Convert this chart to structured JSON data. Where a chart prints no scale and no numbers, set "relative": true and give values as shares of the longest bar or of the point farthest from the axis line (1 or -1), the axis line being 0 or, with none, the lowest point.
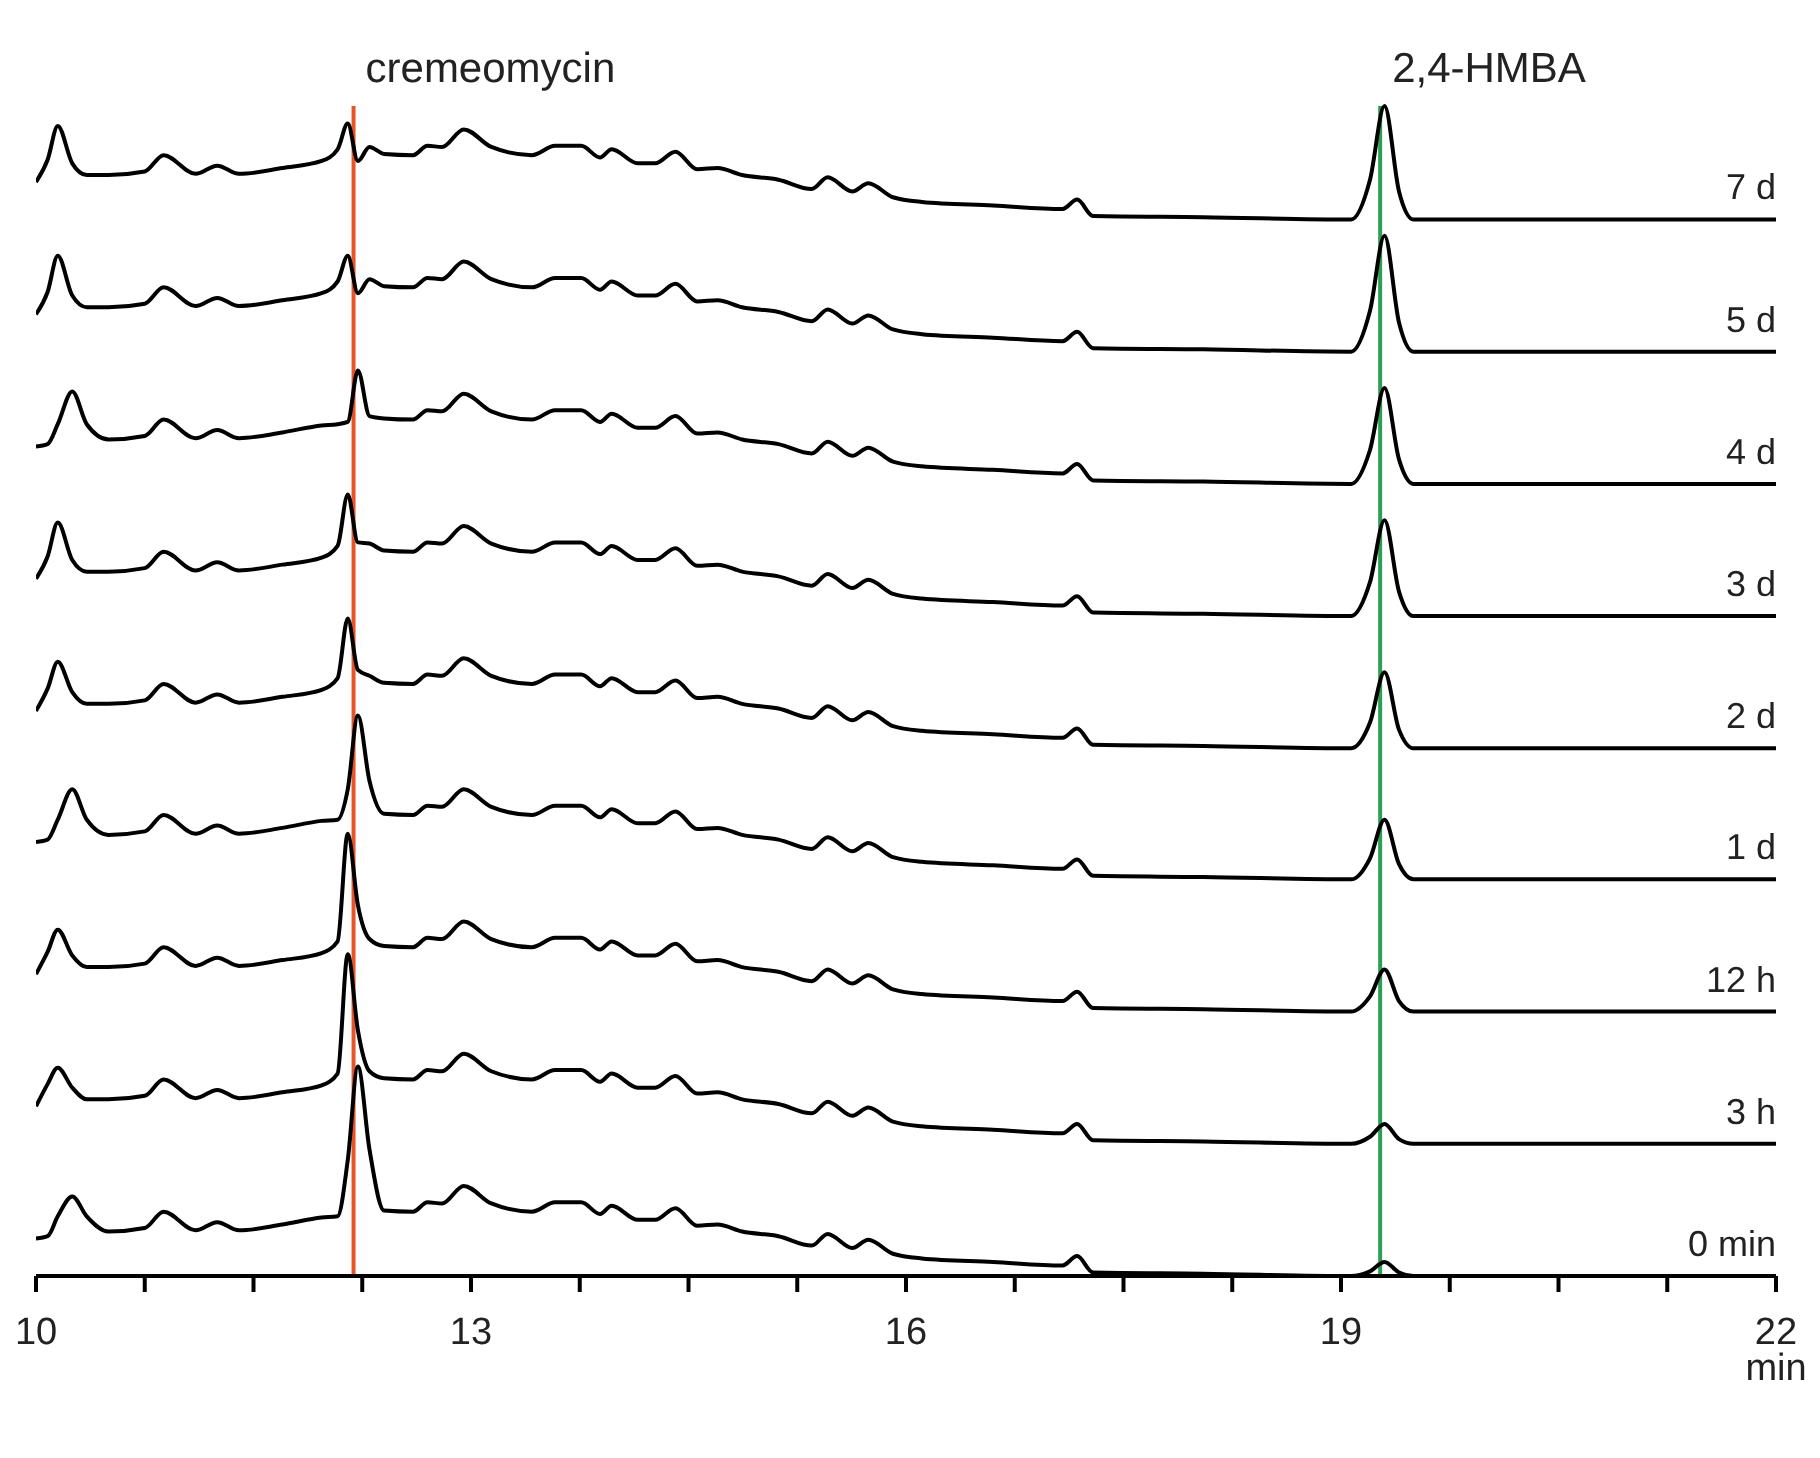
{
  "chart_data": {
    "type": "line",
    "relative": true,
    "xlabel": "min",
    "x": [
      10.0,
      10.08,
      10.15,
      10.25,
      10.35,
      10.5,
      10.75,
      10.88,
      11.1,
      11.25,
      11.4,
      11.7,
      11.97,
      12.08,
      12.15,
      12.22,
      12.3,
      12.4,
      12.6,
      12.7,
      12.8,
      12.95,
      13.14,
      13.42,
      13.58,
      13.76,
      13.89,
      13.97,
      14.15,
      14.27,
      14.41,
      14.56,
      14.7,
      14.87,
      15.12,
      15.35,
      15.46,
      15.63,
      15.74,
      15.91,
      16.11,
      16.6,
      17.08,
      17.18,
      17.29,
      18.05,
      19.07,
      19.2,
      19.3,
      19.4,
      19.5,
      20.5,
      22.0
    ],
    "xlim": [
      10,
      22
    ],
    "xticks": [
      10,
      {
        "value": 10.75,
        "label": null
      },
      {
        "value": 11.5,
        "label": null
      },
      {
        "value": 12.25,
        "label": null
      },
      13,
      {
        "value": 13.75,
        "label": null
      },
      {
        "value": 14.5,
        "label": null
      },
      {
        "value": 15.25,
        "label": null
      },
      16,
      {
        "value": 16.75,
        "label": null
      },
      {
        "value": 17.5,
        "label": null
      },
      {
        "value": 18.25,
        "label": null
      },
      19,
      {
        "value": 19.75,
        "label": null
      },
      {
        "value": 20.5,
        "label": null
      },
      {
        "value": 21.25,
        "label": null
      },
      22
    ],
    "legend": false,
    "marker": "none",
    "ref_lines": [
      {
        "axis": "x",
        "value": 12.19,
        "label": "cremeomycin",
        "color": "#e8542a"
      },
      {
        "axis": "x",
        "value": 19.27,
        "label": "2,4-HMBA",
        "color": "#2e9e55"
      }
    ],
    "series": [
      {
        "name": "7 d",
        "color": "#000000",
        "values": [
          0.935,
          0.954,
          0.983,
          0.951,
          0.941,
          0.941,
          0.944,
          0.958,
          0.942,
          0.949,
          0.942,
          0.947,
          0.953,
          0.963,
          0.985,
          0.953,
          0.965,
          0.959,
          0.958,
          0.966,
          0.965,
          0.98,
          0.965,
          0.958,
          0.966,
          0.966,
          0.956,
          0.963,
          0.951,
          0.951,
          0.961,
          0.946,
          0.947,
          0.941,
          0.937,
          0.929,
          0.939,
          0.927,
          0.934,
          0.922,
          0.918,
          0.915,
          0.912,
          0.92,
          0.906,
          0.905,
          0.903,
          0.937,
          1.0,
          0.927,
          0.903,
          0.903,
          0.903
        ]
      },
      {
        "name": "5 d",
        "color": "#000000",
        "values": [
          0.822,
          0.841,
          0.872,
          0.838,
          0.828,
          0.828,
          0.831,
          0.845,
          0.829,
          0.836,
          0.829,
          0.834,
          0.84,
          0.85,
          0.872,
          0.84,
          0.852,
          0.846,
          0.845,
          0.853,
          0.852,
          0.867,
          0.852,
          0.845,
          0.853,
          0.853,
          0.843,
          0.85,
          0.838,
          0.838,
          0.848,
          0.833,
          0.834,
          0.828,
          0.824,
          0.816,
          0.826,
          0.814,
          0.821,
          0.809,
          0.805,
          0.802,
          0.799,
          0.807,
          0.793,
          0.792,
          0.79,
          0.825,
          0.889,
          0.815,
          0.79,
          0.79,
          0.79
        ]
      },
      {
        "name": "4 d",
        "color": "#000000",
        "values": [
          0.709,
          0.711,
          0.728,
          0.756,
          0.728,
          0.715,
          0.718,
          0.732,
          0.716,
          0.723,
          0.716,
          0.721,
          0.727,
          0.728,
          0.73,
          0.774,
          0.735,
          0.733,
          0.732,
          0.74,
          0.739,
          0.754,
          0.739,
          0.732,
          0.74,
          0.74,
          0.73,
          0.737,
          0.725,
          0.725,
          0.735,
          0.72,
          0.721,
          0.715,
          0.711,
          0.703,
          0.713,
          0.701,
          0.708,
          0.696,
          0.692,
          0.689,
          0.686,
          0.694,
          0.68,
          0.679,
          0.677,
          0.706,
          0.759,
          0.698,
          0.677,
          0.677,
          0.677
        ]
      },
      {
        "name": "3 d",
        "color": "#000000",
        "values": [
          0.596,
          0.615,
          0.644,
          0.612,
          0.602,
          0.602,
          0.605,
          0.619,
          0.603,
          0.61,
          0.603,
          0.608,
          0.614,
          0.624,
          0.668,
          0.627,
          0.626,
          0.62,
          0.619,
          0.627,
          0.626,
          0.641,
          0.626,
          0.619,
          0.627,
          0.627,
          0.617,
          0.624,
          0.612,
          0.612,
          0.622,
          0.607,
          0.608,
          0.602,
          0.598,
          0.59,
          0.6,
          0.588,
          0.595,
          0.583,
          0.579,
          0.576,
          0.573,
          0.581,
          0.567,
          0.566,
          0.564,
          0.593,
          0.646,
          0.585,
          0.564,
          0.564,
          0.564
        ]
      },
      {
        "name": "2 d",
        "color": "#000000",
        "values": [
          0.483,
          0.502,
          0.525,
          0.499,
          0.489,
          0.489,
          0.492,
          0.506,
          0.49,
          0.497,
          0.49,
          0.495,
          0.501,
          0.511,
          0.562,
          0.518,
          0.513,
          0.507,
          0.506,
          0.514,
          0.513,
          0.528,
          0.513,
          0.506,
          0.514,
          0.514,
          0.504,
          0.511,
          0.499,
          0.499,
          0.509,
          0.494,
          0.495,
          0.489,
          0.485,
          0.477,
          0.487,
          0.475,
          0.482,
          0.47,
          0.466,
          0.463,
          0.46,
          0.468,
          0.454,
          0.453,
          0.451,
          0.473,
          0.516,
          0.467,
          0.451,
          0.451,
          0.451
        ]
      },
      {
        "name": "1 d",
        "color": "#000000",
        "values": [
          0.371,
          0.373,
          0.39,
          0.416,
          0.39,
          0.377,
          0.38,
          0.394,
          0.378,
          0.385,
          0.378,
          0.383,
          0.389,
          0.39,
          0.416,
          0.479,
          0.423,
          0.395,
          0.394,
          0.402,
          0.401,
          0.416,
          0.401,
          0.394,
          0.402,
          0.402,
          0.392,
          0.399,
          0.387,
          0.387,
          0.397,
          0.382,
          0.383,
          0.377,
          0.373,
          0.365,
          0.375,
          0.363,
          0.37,
          0.358,
          0.354,
          0.351,
          0.348,
          0.356,
          0.342,
          0.341,
          0.339,
          0.357,
          0.39,
          0.352,
          0.339,
          0.339,
          0.339
        ]
      },
      {
        "name": "12 h",
        "color": "#000000",
        "values": [
          0.258,
          0.277,
          0.296,
          0.274,
          0.264,
          0.264,
          0.267,
          0.281,
          0.265,
          0.272,
          0.265,
          0.27,
          0.276,
          0.286,
          0.378,
          0.317,
          0.288,
          0.282,
          0.281,
          0.289,
          0.288,
          0.303,
          0.288,
          0.281,
          0.289,
          0.289,
          0.279,
          0.286,
          0.274,
          0.274,
          0.284,
          0.269,
          0.27,
          0.264,
          0.26,
          0.252,
          0.262,
          0.25,
          0.257,
          0.245,
          0.241,
          0.238,
          0.235,
          0.243,
          0.229,
          0.228,
          0.226,
          0.239,
          0.262,
          0.235,
          0.226,
          0.226,
          0.226
        ]
      },
      {
        "name": "3 h",
        "color": "#000000",
        "values": [
          0.145,
          0.164,
          0.178,
          0.161,
          0.151,
          0.151,
          0.154,
          0.168,
          0.152,
          0.159,
          0.152,
          0.157,
          0.163,
          0.173,
          0.275,
          0.21,
          0.175,
          0.169,
          0.168,
          0.176,
          0.175,
          0.19,
          0.175,
          0.168,
          0.176,
          0.176,
          0.166,
          0.173,
          0.161,
          0.161,
          0.171,
          0.156,
          0.157,
          0.151,
          0.147,
          0.139,
          0.149,
          0.137,
          0.144,
          0.132,
          0.128,
          0.125,
          0.122,
          0.13,
          0.116,
          0.115,
          0.113,
          0.119,
          0.13,
          0.117,
          0.113,
          0.113,
          0.113
        ]
      },
      {
        "name": "0 min",
        "color": "#000000",
        "values": [
          0.032,
          0.034,
          0.051,
          0.068,
          0.051,
          0.038,
          0.041,
          0.055,
          0.039,
          0.046,
          0.039,
          0.044,
          0.05,
          0.051,
          0.099,
          0.179,
          0.108,
          0.056,
          0.055,
          0.063,
          0.062,
          0.077,
          0.062,
          0.055,
          0.063,
          0.063,
          0.053,
          0.06,
          0.048,
          0.048,
          0.058,
          0.043,
          0.044,
          0.038,
          0.034,
          0.026,
          0.036,
          0.024,
          0.031,
          0.019,
          0.015,
          0.012,
          0.009,
          0.017,
          0.003,
          0.002,
          0.0,
          0.004,
          0.012,
          0.003,
          0.0,
          0.0,
          0.0
        ]
      }
    ]
  }
}
